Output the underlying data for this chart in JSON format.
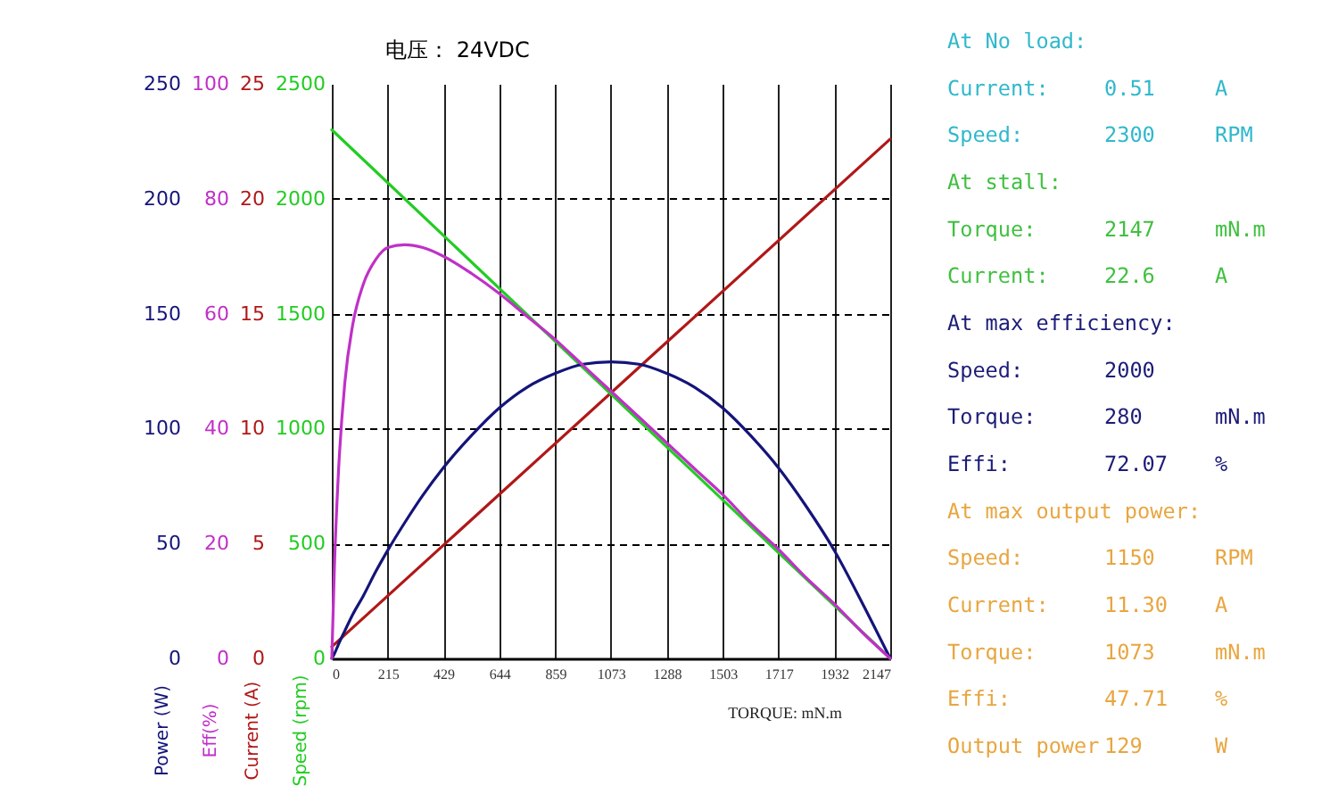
{
  "chart_data": [
    {
      "type": "line",
      "title": "电压： 24VDC",
      "xlabel": "TORQUE: mN.m",
      "ylabel": "Power (W)",
      "y2label": "Eff(%)",
      "x": [
        0,
        10,
        25,
        50,
        80,
        120,
        170,
        215,
        280,
        350,
        429,
        537,
        644,
        751,
        859,
        966,
        1073,
        1181,
        1288,
        1395,
        1503,
        1610,
        1717,
        1825,
        1932,
        2040,
        2147
      ],
      "xlim": [
        0,
        2147
      ],
      "xticks": [
        0,
        215,
        429,
        644,
        859,
        1073,
        1288,
        1503,
        1717,
        1932,
        2147
      ],
      "ylim": [
        0,
        250
      ],
      "yticks": [
        0,
        50,
        100,
        150,
        200,
        250
      ],
      "y2lim": [
        0,
        100
      ],
      "y2ticks": [
        0,
        20,
        40,
        60,
        80,
        100
      ],
      "grid": true,
      "series": [
        {
          "color": "#14147a",
          "values": [
            0,
            2,
            6,
            12,
            19,
            27,
            38,
            47,
            59,
            71,
            83,
            97,
            109,
            118,
            124,
            128,
            129,
            128,
            124,
            118,
            109,
            97,
            83,
            66,
            47,
            24,
            0
          ]
        },
        {
          "color": "#c030c8",
          "axis": "y2",
          "values": [
            0,
            16,
            32,
            48,
            58,
            65,
            69.5,
            71.5,
            72,
            71.5,
            70,
            67,
            63.5,
            59.5,
            55.5,
            51,
            46.5,
            42,
            37.5,
            33,
            28.5,
            23.5,
            19,
            14,
            9.5,
            4.5,
            0
          ]
        }
      ]
    },
    {
      "type": "line",
      "ylabel": "Current (A)",
      "y2label": "Speed (rpm)",
      "x": [
        0,
        2147
      ],
      "xlim": [
        0,
        2147
      ],
      "tick_labels": "y",
      "ylim": [
        0,
        25
      ],
      "yticks": [
        0,
        5,
        10,
        15,
        20,
        25
      ],
      "y2lim": [
        0,
        2500
      ],
      "y2ticks": [
        0,
        500,
        1000,
        1500,
        2000,
        2500
      ],
      "series": [
        {
          "color": "#b01818",
          "values": [
            0.51,
            22.6
          ]
        },
        {
          "color": "#22cc22",
          "axis": "y2",
          "values": [
            2300,
            0
          ]
        }
      ]
    },
    {
      "type": "other",
      "annotations": [
        "At No load:",
        "Current:\t0.51\tA",
        "Speed:\t2300\tRPM",
        "At stall:",
        "Torque:\t2147\tmN.m",
        "Current:\t22.6\tA",
        "At max efficiency:",
        "Speed:\t2000",
        "Torque:\t280\tmN.m",
        "Effi:\t72.07\t%",
        "At max output power:",
        "Speed:\t1150\tRPM",
        "Current:\t11.30\tA",
        "Torque:\t1073\tmN.m",
        "Effi:\t47.71\t%",
        "Output power\t129\tW"
      ],
      "colors": [
        "#30b8cc",
        "#30b8cc",
        "#30b8cc",
        "#40c040",
        "#40c040",
        "#40c040",
        "#1c1c78",
        "#1c1c78",
        "#1c1c78",
        "#1c1c78",
        "#e8a640",
        "#e8a640",
        "#e8a640",
        "#e8a640",
        "#e8a640",
        "#e8a640"
      ]
    }
  ]
}
